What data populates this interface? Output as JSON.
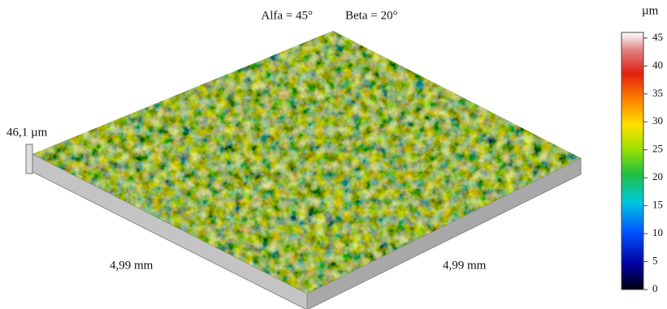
{
  "header": {
    "alfa": "Alfa = 45°",
    "beta": "Beta = 20°"
  },
  "height_label": "46,1 µm",
  "x_label": "4,99 mm",
  "y_label": "4,99 mm",
  "colorbar": {
    "unit": "µm",
    "lim": [
      0,
      46
    ],
    "ticks": [
      0,
      5,
      10,
      15,
      20,
      25,
      30,
      35,
      40,
      45
    ]
  }
}
